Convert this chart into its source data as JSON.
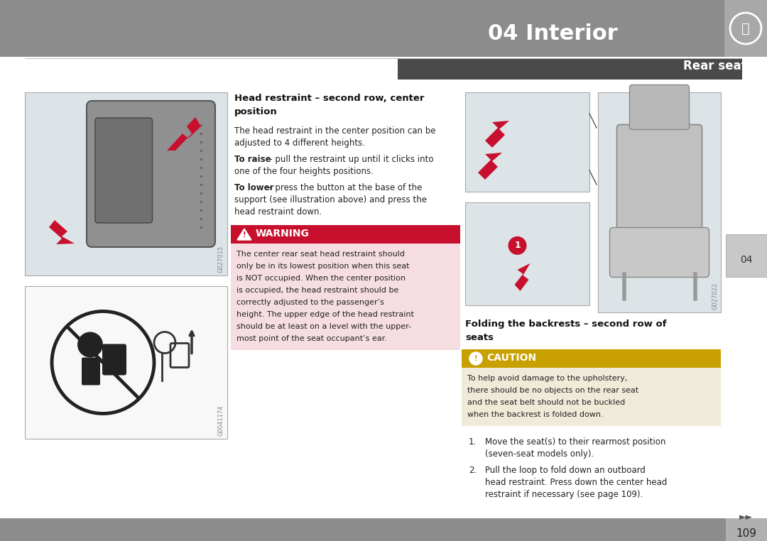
{
  "page_bg": "#ffffff",
  "header_bg": "#8c8c8c",
  "header_text": "04 Interior",
  "header_text_color": "#ffffff",
  "subheader_bg": "#4a4a4a",
  "subheader_text": "Rear seats",
  "subheader_text_color": "#ffffff",
  "footer_bg": "#8c8c8c",
  "footer_text": "109",
  "sidebar_bg": "#c8c8c8",
  "sidebar_text": "04",
  "section1_title_line1": "Head restraint – second row, center",
  "section1_title_line2": "position",
  "body_para1": "The head restraint in the center position can be\nadjusted to 4 different heights.",
  "body_para2_bold": "To raise",
  "body_para2_rest": " – pull the restraint up until it clicks into\none of the four heights positions.",
  "body_para3_bold": "To lower",
  "body_para3_rest": " – press the button at the base of the\nsupport (see illustration above) and press the\nhead restraint down.",
  "warning_title": "WARNING",
  "warning_bg": "#c8102e",
  "warning_text_bg": "#f5dde1",
  "warning_text_lines": [
    "The center rear seat head restraint should",
    "only be in its lowest position when this seat",
    "is NOT occupied. When the center position",
    "is occupied, the head restraint should be",
    "correctly adjusted to the passenger’s",
    "height. The upper edge of the head restraint",
    "should be at least on a level with the upper-",
    "most point of the seat occupant’s ear."
  ],
  "section2_title_line1": "Folding the backrests – second row of",
  "section2_title_line2": "seats",
  "caution_title": "CAUTION",
  "caution_bg": "#c8a000",
  "caution_text_bg": "#f0ead8",
  "caution_text_lines": [
    "To help avoid damage to the upholstery,",
    "there should be no objects on the rear seat",
    "and the seat belt should not be buckled",
    "when the backrest is folded down."
  ],
  "list_item1_line1": "Move the seat(s) to their rearmost position",
  "list_item1_line2": "(seven-seat models only).",
  "list_item2_line1": "Pull the loop to fold down an outboard",
  "list_item2_line2": "head restraint. Press down the center head",
  "list_item2_line3": "restraint if necessary (see page 109).",
  "img1_code": "G027015",
  "img2_code": "G0041174",
  "img3_code": "G027022",
  "arrow_symbol": "►►",
  "red_color": "#c8102e",
  "dark_gray": "#333333",
  "mid_gray": "#888888",
  "light_gray": "#e8e8e8",
  "border_gray": "#aaaaaa",
  "img_bg1": "#dce4e8",
  "img_bg2": "#f0f0f0"
}
